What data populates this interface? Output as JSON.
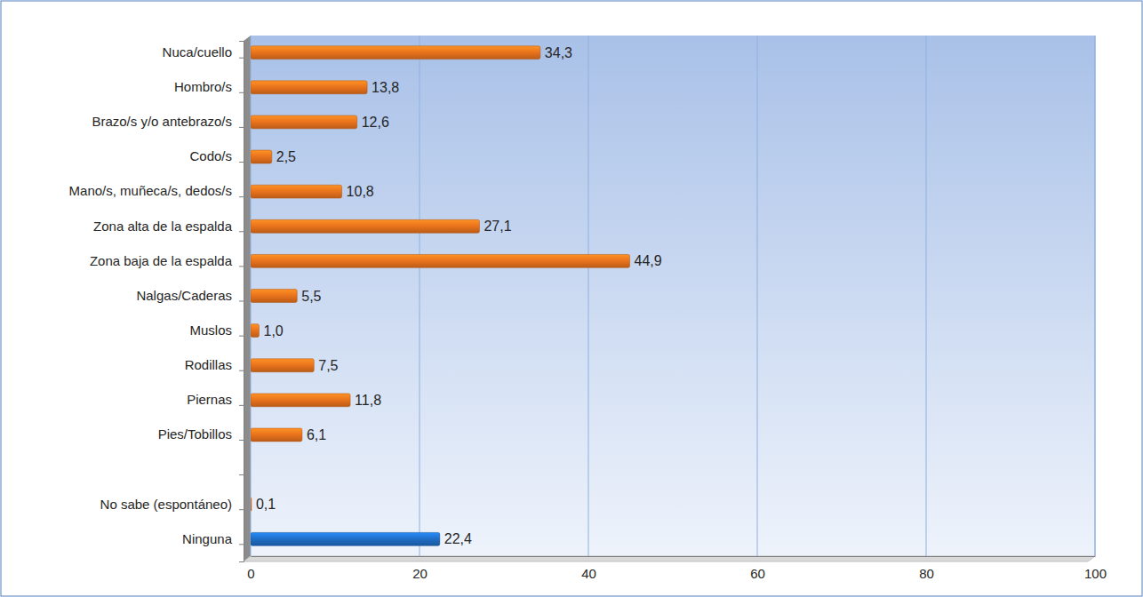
{
  "chart_data": {
    "type": "bar",
    "orientation": "horizontal",
    "categories": [
      "Nuca/cuello",
      "Hombro/s",
      "Brazo/s y/o antebrazo/s",
      "Codo/s",
      "Mano/s, muñeca/s, dedos/s",
      "Zona alta de la espalda",
      "Zona baja de la espalda",
      "Nalgas/Caderas",
      "Muslos",
      "Rodillas",
      "Piernas",
      "Pies/Tobillos",
      null,
      "No sabe (espontáneo)",
      "Ninguna"
    ],
    "values": [
      34.3,
      13.8,
      12.6,
      2.5,
      10.8,
      27.1,
      44.9,
      5.5,
      1.0,
      7.5,
      11.8,
      6.1,
      null,
      0.1,
      22.4
    ],
    "value_labels": [
      "34,3",
      "13,8",
      "12,6",
      "2,5",
      "10,8",
      "27,1",
      "44,9",
      "5,5",
      "1,0",
      "7,5",
      "11,8",
      "6,1",
      null,
      "0,1",
      "22,4"
    ],
    "colors": [
      "#e8721c",
      "#e8721c",
      "#e8721c",
      "#e8721c",
      "#e8721c",
      "#e8721c",
      "#e8721c",
      "#e8721c",
      "#e8721c",
      "#e8721c",
      "#e8721c",
      "#e8721c",
      null,
      "#e8721c",
      "#1f6dc4"
    ],
    "xlim": [
      0,
      100
    ],
    "xticks": [
      0,
      20,
      40,
      60,
      80,
      100
    ],
    "grid": true,
    "data_labels": true
  }
}
